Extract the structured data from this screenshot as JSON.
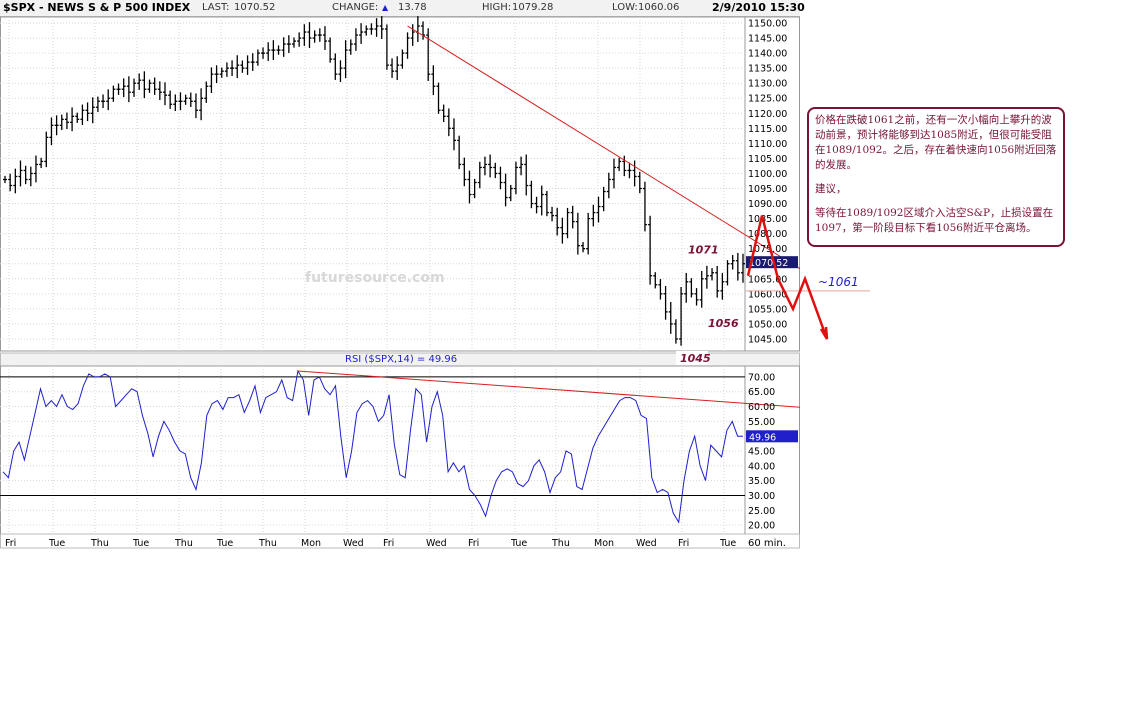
{
  "header": {
    "symbol": "$SPX - NEWS S & P 500 INDEX",
    "last_label": "LAST:",
    "last_value": "1070.52",
    "change_label": "CHANGE:",
    "change_value": "13.78",
    "high_label": "HIGH:",
    "high_value": "1079.28",
    "low_label": "LOW:",
    "low_value": "1060.06",
    "datetime": "2/9/2010 15:30"
  },
  "watermark": "futuresource.com",
  "rsi_title": "RSI ($SPX,14) = 49.96",
  "timeframe_label": "60 min.",
  "annotation": {
    "p1": "价格在跌破1061之前，还有一次小幅向上攀升的波动前景，预计将能够到达1085附近，但很可能受阻在1089/1092。之后，存在着快速向1056附近回落的发展。",
    "p2": "建议，",
    "p3": "等待在1089/1092区域介入沽空S&P，止损设置在1097，第一阶段目标下看1056附近平仓离场。"
  },
  "colors": {
    "price_bars": "#000000",
    "rsi_line": "#1f1fcc",
    "trendline": "#d42020",
    "annotation": "#7a1238",
    "price_tag_bg": "#1a1a6e",
    "rsi_tag_bg": "#1f1fcc",
    "change_arrow": "#1f1fcc"
  },
  "chart_data": [
    {
      "type": "candlestick",
      "title": "$SPX - NEWS S & P 500 INDEX",
      "ylim": [
        1041,
        1152
      ],
      "y_ticks": [
        "1150.00",
        "1145.00",
        "1140.00",
        "1135.00",
        "1130.00",
        "1125.00",
        "1120.00",
        "1115.00",
        "1110.00",
        "1105.00",
        "1100.00",
        "1095.00",
        "1090.00",
        "1085.00",
        "1080.00",
        "1075.00",
        "1070.00",
        "1065.00",
        "1060.00",
        "1055.00",
        "1050.00",
        "1045.00"
      ],
      "last_price_tag": "1070.52",
      "x_ticks": [
        "Fri",
        "Tue",
        "Thu",
        "Tue",
        "Thu",
        "Tue",
        "Thu",
        "Mon",
        "Wed",
        "Fri",
        "Wed",
        "Fri",
        "Tue",
        "Thu",
        "Mon",
        "Wed",
        "Fri",
        "Tue"
      ],
      "series": [
        {
          "values": [
            1098,
            1096,
            1099,
            1101,
            1098,
            1100,
            1103,
            1104,
            1112,
            1116,
            1116,
            1118,
            1117,
            1119,
            1118,
            1121,
            1120,
            1122,
            1124,
            1124,
            1125,
            1128,
            1128,
            1129,
            1127,
            1130,
            1131,
            1128,
            1130,
            1128,
            1127,
            1126,
            1123,
            1124,
            1124,
            1125,
            1124,
            1121,
            1125,
            1129,
            1133,
            1133,
            1134,
            1135,
            1135,
            1136,
            1135,
            1137,
            1137,
            1140,
            1140,
            1141,
            1141,
            1141,
            1143,
            1143,
            1144,
            1145,
            1147,
            1145,
            1146,
            1146,
            1144,
            1138,
            1133,
            1135,
            1141,
            1143,
            1146,
            1147,
            1148,
            1148,
            1149,
            1148,
            1136,
            1134,
            1136,
            1140,
            1145,
            1147,
            1149,
            1146,
            1133,
            1129,
            1121,
            1119,
            1115,
            1111,
            1103,
            1098,
            1093,
            1097,
            1102,
            1103,
            1102,
            1100,
            1097,
            1092,
            1095,
            1102,
            1103,
            1096,
            1090,
            1089,
            1093,
            1087,
            1086,
            1082,
            1080,
            1087,
            1084,
            1076,
            1075,
            1085,
            1087,
            1089,
            1094,
            1098,
            1102,
            1104,
            1101,
            1101,
            1099,
            1095,
            1083,
            1066,
            1063,
            1060,
            1054,
            1050,
            1045,
            1060,
            1064,
            1060,
            1058,
            1065,
            1066,
            1067,
            1061,
            1064,
            1070,
            1071,
            1067,
            1070
          ]
        }
      ],
      "annotations": [
        {
          "text": "1071",
          "x_index": 130,
          "y": 1071
        },
        {
          "text": "1056",
          "x_index": 126,
          "y": 1056
        },
        {
          "text": "1045",
          "x_index": 128,
          "y": 1041
        },
        {
          "text": "~1061",
          "y": 1061
        }
      ],
      "trendline": {
        "from": {
          "x_index": 78,
          "y": 1149
        },
        "to": {
          "x_index": 144,
          "y": 1079
        }
      },
      "projection": [
        1066,
        1086,
        1065,
        1055,
        1065,
        1045
      ]
    },
    {
      "type": "line",
      "title": "RSI ($SPX,14) = 49.96",
      "ylim": [
        17,
        73
      ],
      "y_ticks": [
        "70.00",
        "65.00",
        "60.00",
        "55.00",
        "50.00",
        "45.00",
        "40.00",
        "35.00",
        "30.00",
        "25.00",
        "20.00"
      ],
      "reference_lines": [
        70,
        30
      ],
      "last_value_tag": "49.96",
      "series": [
        {
          "values": [
            38,
            36,
            45,
            48,
            42,
            50,
            58,
            66,
            60,
            62,
            60,
            64,
            60,
            59,
            61,
            67,
            71,
            70,
            70,
            71,
            70,
            60,
            62,
            64,
            66,
            65,
            57,
            51,
            43,
            50,
            55,
            52,
            48,
            45,
            44,
            36,
            32,
            41,
            57,
            61,
            62,
            59,
            63,
            63,
            64,
            58,
            62,
            67,
            58,
            63,
            64,
            65,
            69,
            63,
            62,
            72,
            69,
            57,
            69,
            70,
            66,
            64,
            67,
            50,
            36,
            45,
            58,
            61,
            62,
            60,
            55,
            57,
            64,
            47,
            37,
            36,
            52,
            66,
            64,
            48,
            60,
            65,
            57,
            38,
            41,
            38,
            40,
            32,
            30,
            27,
            23,
            30,
            35,
            38,
            39,
            38,
            34,
            33,
            35,
            40,
            42,
            38,
            31,
            36,
            38,
            45,
            44,
            33,
            32,
            39,
            46,
            50,
            53,
            56,
            59,
            62,
            63,
            63,
            62,
            57,
            56,
            36,
            31,
            32,
            31,
            24,
            21,
            35,
            45,
            50,
            40,
            35,
            47,
            45,
            43,
            52,
            55,
            50,
            50
          ]
        }
      ],
      "trendline": {
        "from": {
          "x_index": 55,
          "y": 72
        },
        "to": {
          "x_index": 139,
          "y": 61
        }
      }
    }
  ]
}
